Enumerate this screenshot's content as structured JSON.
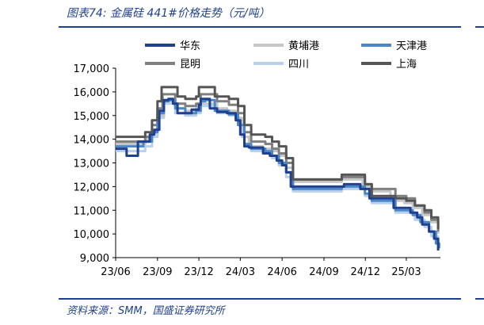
{
  "figure": {
    "title": "图表74:  金属硅 441#价格走势（元/吨）",
    "source": "资料来源：SMM，国盛证券研究所"
  },
  "chart_data": {
    "type": "line",
    "title": "金属硅 441#价格走势（元/吨）",
    "xlabel": "",
    "ylabel": "",
    "x_tick_labels": [
      "23/06",
      "23/09",
      "23/12",
      "24/03",
      "24/06",
      "24/09",
      "24/12",
      "25/03"
    ],
    "y_tick_labels": [
      "9,000",
      "10,000",
      "11,000",
      "12,000",
      "13,000",
      "14,000",
      "15,000",
      "16,000",
      "17,000"
    ],
    "ylim": [
      9000,
      17000
    ],
    "xlim": [
      "2023-06-01",
      "2025-05-15"
    ],
    "grid": false,
    "legend_position": "top",
    "series": [
      {
        "name": "华东",
        "color": "#1f3f8f",
        "points": [
          [
            "2023-06-01",
            13600
          ],
          [
            "2023-06-20",
            13600
          ],
          [
            "2023-06-25",
            13300
          ],
          [
            "2023-07-15",
            13300
          ],
          [
            "2023-07-20",
            13900
          ],
          [
            "2023-08-05",
            13900
          ],
          [
            "2023-08-15",
            14200
          ],
          [
            "2023-08-25",
            14400
          ],
          [
            "2023-09-05",
            15200
          ],
          [
            "2023-09-15",
            15650
          ],
          [
            "2023-09-25",
            15700
          ],
          [
            "2023-10-05",
            15500
          ],
          [
            "2023-10-15",
            15100
          ],
          [
            "2023-11-01",
            15100
          ],
          [
            "2023-11-15",
            15250
          ],
          [
            "2023-12-01",
            15450
          ],
          [
            "2023-12-05",
            15700
          ],
          [
            "2023-12-15",
            15700
          ],
          [
            "2023-12-25",
            15300
          ],
          [
            "2024-01-10",
            15150
          ],
          [
            "2024-02-01",
            15100
          ],
          [
            "2024-02-20",
            14800
          ],
          [
            "2024-03-01",
            14200
          ],
          [
            "2024-03-10",
            13700
          ],
          [
            "2024-03-20",
            13650
          ],
          [
            "2024-04-10",
            13650
          ],
          [
            "2024-04-20",
            13400
          ],
          [
            "2024-05-05",
            13300
          ],
          [
            "2024-05-20",
            13100
          ],
          [
            "2024-06-01",
            12900
          ],
          [
            "2024-06-10",
            12600
          ],
          [
            "2024-06-20",
            12000
          ],
          [
            "2024-07-10",
            12000
          ],
          [
            "2024-08-01",
            12000
          ],
          [
            "2024-09-01",
            12000
          ],
          [
            "2024-10-01",
            12000
          ],
          [
            "2024-10-15",
            12100
          ],
          [
            "2024-11-01",
            12100
          ],
          [
            "2024-11-20",
            11900
          ],
          [
            "2024-12-10",
            11500
          ],
          [
            "2025-01-15",
            11500
          ],
          [
            "2025-02-01",
            11100
          ],
          [
            "2025-02-25",
            11100
          ],
          [
            "2025-03-10",
            10900
          ],
          [
            "2025-03-25",
            10700
          ],
          [
            "2025-04-05",
            10400
          ],
          [
            "2025-04-20",
            10100
          ],
          [
            "2025-05-01",
            9800
          ],
          [
            "2025-05-10",
            9300
          ]
        ]
      },
      {
        "name": "黄埔港",
        "color": "#c6c6c6",
        "points": [
          [
            "2023-06-01",
            13800
          ],
          [
            "2023-07-15",
            13800
          ],
          [
            "2023-08-05",
            14000
          ],
          [
            "2023-08-20",
            14400
          ],
          [
            "2023-09-01",
            15000
          ],
          [
            "2023-09-15",
            15600
          ],
          [
            "2023-09-25",
            15600
          ],
          [
            "2023-10-10",
            15300
          ],
          [
            "2023-11-01",
            15200
          ],
          [
            "2023-11-25",
            15300
          ],
          [
            "2023-12-05",
            15500
          ],
          [
            "2023-12-20",
            15500
          ],
          [
            "2024-01-10",
            15300
          ],
          [
            "2024-02-01",
            15200
          ],
          [
            "2024-02-20",
            14900
          ],
          [
            "2024-03-05",
            14100
          ],
          [
            "2024-03-20",
            13700
          ],
          [
            "2024-04-20",
            13600
          ],
          [
            "2024-05-10",
            13500
          ],
          [
            "2024-05-25",
            13300
          ],
          [
            "2024-06-10",
            12800
          ],
          [
            "2024-06-25",
            12200
          ],
          [
            "2024-07-15",
            12200
          ],
          [
            "2024-08-15",
            12200
          ],
          [
            "2024-09-15",
            12200
          ],
          [
            "2024-10-10",
            12300
          ],
          [
            "2024-11-05",
            12300
          ],
          [
            "2024-11-25",
            12000
          ],
          [
            "2024-12-10",
            11800
          ],
          [
            "2025-01-10",
            11800
          ],
          [
            "2025-01-25",
            11400
          ],
          [
            "2025-02-25",
            11300
          ],
          [
            "2025-03-15",
            11100
          ],
          [
            "2025-04-05",
            10800
          ],
          [
            "2025-04-25",
            10500
          ],
          [
            "2025-05-10",
            10000
          ]
        ]
      },
      {
        "name": "天津港",
        "color": "#4a86c8",
        "points": [
          [
            "2023-06-01",
            13700
          ],
          [
            "2023-07-15",
            13700
          ],
          [
            "2023-08-01",
            13900
          ],
          [
            "2023-08-20",
            14300
          ],
          [
            "2023-09-01",
            15100
          ],
          [
            "2023-09-15",
            15600
          ],
          [
            "2023-09-25",
            15650
          ],
          [
            "2023-10-10",
            15300
          ],
          [
            "2023-11-01",
            15100
          ],
          [
            "2023-11-25",
            15200
          ],
          [
            "2023-12-05",
            15600
          ],
          [
            "2023-12-15",
            15650
          ],
          [
            "2024-01-05",
            15200
          ],
          [
            "2024-02-05",
            15050
          ],
          [
            "2024-02-25",
            14600
          ],
          [
            "2024-03-10",
            13800
          ],
          [
            "2024-03-25",
            13600
          ],
          [
            "2024-04-25",
            13500
          ],
          [
            "2024-05-10",
            13300
          ],
          [
            "2024-05-25",
            13000
          ],
          [
            "2024-06-10",
            12600
          ],
          [
            "2024-06-25",
            11900
          ],
          [
            "2024-07-20",
            11900
          ],
          [
            "2024-08-20",
            11900
          ],
          [
            "2024-09-20",
            11900
          ],
          [
            "2024-10-10",
            12000
          ],
          [
            "2024-11-10",
            12000
          ],
          [
            "2024-11-30",
            11700
          ],
          [
            "2024-12-15",
            11400
          ],
          [
            "2025-01-20",
            11400
          ],
          [
            "2025-02-05",
            11000
          ],
          [
            "2025-03-01",
            11000
          ],
          [
            "2025-03-15",
            10800
          ],
          [
            "2025-04-01",
            10500
          ],
          [
            "2025-04-20",
            10100
          ],
          [
            "2025-05-05",
            9600
          ],
          [
            "2025-05-12",
            9400
          ]
        ]
      },
      {
        "name": "昆明",
        "color": "#7f7f7f",
        "points": [
          [
            "2023-06-01",
            13900
          ],
          [
            "2023-07-15",
            13900
          ],
          [
            "2023-08-05",
            14100
          ],
          [
            "2023-08-20",
            14600
          ],
          [
            "2023-09-01",
            15300
          ],
          [
            "2023-09-12",
            15900
          ],
          [
            "2023-09-25",
            15900
          ],
          [
            "2023-10-10",
            15500
          ],
          [
            "2023-11-01",
            15400
          ],
          [
            "2023-11-25",
            15500
          ],
          [
            "2023-12-05",
            15900
          ],
          [
            "2023-12-20",
            15900
          ],
          [
            "2024-01-10",
            15600
          ],
          [
            "2024-02-05",
            15450
          ],
          [
            "2024-02-25",
            15100
          ],
          [
            "2024-03-10",
            14300
          ],
          [
            "2024-03-25",
            13900
          ],
          [
            "2024-04-25",
            13800
          ],
          [
            "2024-05-10",
            13600
          ],
          [
            "2024-05-25",
            13400
          ],
          [
            "2024-06-10",
            13000
          ],
          [
            "2024-06-25",
            12300
          ],
          [
            "2024-07-20",
            12300
          ],
          [
            "2024-08-20",
            12300
          ],
          [
            "2024-09-20",
            12300
          ],
          [
            "2024-10-10",
            12400
          ],
          [
            "2024-11-10",
            12400
          ],
          [
            "2024-11-30",
            12100
          ],
          [
            "2024-12-15",
            11900
          ],
          [
            "2025-01-20",
            11900
          ],
          [
            "2025-02-05",
            11600
          ],
          [
            "2025-03-01",
            11500
          ],
          [
            "2025-03-20",
            11200
          ],
          [
            "2025-04-10",
            10900
          ],
          [
            "2025-04-25",
            10600
          ],
          [
            "2025-05-10",
            10100
          ]
        ]
      },
      {
        "name": "四川",
        "color": "#b8d0ea",
        "points": [
          [
            "2023-06-01",
            13500
          ],
          [
            "2023-07-15",
            13500
          ],
          [
            "2023-08-05",
            13700
          ],
          [
            "2023-08-20",
            14100
          ],
          [
            "2023-09-01",
            14900
          ],
          [
            "2023-09-15",
            15500
          ],
          [
            "2023-09-25",
            15500
          ],
          [
            "2023-10-10",
            15100
          ],
          [
            "2023-11-01",
            15000
          ],
          [
            "2023-11-25",
            15100
          ],
          [
            "2023-12-05",
            15400
          ],
          [
            "2023-12-20",
            15400
          ],
          [
            "2024-01-10",
            15100
          ],
          [
            "2024-02-05",
            15000
          ],
          [
            "2024-02-25",
            14600
          ],
          [
            "2024-03-10",
            13700
          ],
          [
            "2024-03-25",
            13500
          ],
          [
            "2024-04-25",
            13400
          ],
          [
            "2024-05-10",
            13200
          ],
          [
            "2024-05-25",
            12900
          ],
          [
            "2024-06-10",
            12400
          ],
          [
            "2024-06-25",
            11800
          ],
          [
            "2024-07-20",
            11800
          ],
          [
            "2024-08-20",
            11800
          ],
          [
            "2024-09-20",
            11800
          ],
          [
            "2024-10-10",
            11900
          ],
          [
            "2024-11-10",
            11900
          ],
          [
            "2024-11-30",
            11600
          ],
          [
            "2024-12-15",
            11300
          ],
          [
            "2025-01-20",
            11300
          ],
          [
            "2025-02-05",
            10900
          ],
          [
            "2025-03-01",
            10900
          ],
          [
            "2025-03-20",
            10600
          ],
          [
            "2025-04-10",
            10300
          ],
          [
            "2025-04-25",
            9900
          ],
          [
            "2025-05-10",
            9500
          ]
        ]
      },
      {
        "name": "上海",
        "color": "#555555",
        "points": [
          [
            "2023-06-01",
            14100
          ],
          [
            "2023-07-15",
            14100
          ],
          [
            "2023-08-05",
            14300
          ],
          [
            "2023-08-20",
            14800
          ],
          [
            "2023-09-01",
            15600
          ],
          [
            "2023-09-10",
            16200
          ],
          [
            "2023-09-30",
            16200
          ],
          [
            "2023-10-15",
            15800
          ],
          [
            "2023-11-01",
            15700
          ],
          [
            "2023-11-25",
            15800
          ],
          [
            "2023-12-01",
            16200
          ],
          [
            "2023-12-15",
            16200
          ],
          [
            "2024-01-05",
            15800
          ],
          [
            "2024-02-05",
            15700
          ],
          [
            "2024-02-25",
            15400
          ],
          [
            "2024-03-10",
            14600
          ],
          [
            "2024-03-25",
            14200
          ],
          [
            "2024-04-25",
            14100
          ],
          [
            "2024-05-10",
            13900
          ],
          [
            "2024-05-25",
            13700
          ],
          [
            "2024-06-10",
            13200
          ],
          [
            "2024-06-25",
            12300
          ],
          [
            "2024-07-20",
            12300
          ],
          [
            "2024-08-20",
            12300
          ],
          [
            "2024-09-20",
            12300
          ],
          [
            "2024-10-10",
            12500
          ],
          [
            "2024-11-10",
            12500
          ],
          [
            "2024-11-30",
            12100
          ],
          [
            "2024-12-15",
            11600
          ],
          [
            "2025-01-20",
            11600
          ],
          [
            "2025-02-05",
            11500
          ],
          [
            "2025-03-01",
            11400
          ],
          [
            "2025-03-20",
            11200
          ],
          [
            "2025-04-10",
            11000
          ],
          [
            "2025-04-25",
            10700
          ],
          [
            "2025-05-10",
            10200
          ]
        ]
      }
    ]
  }
}
